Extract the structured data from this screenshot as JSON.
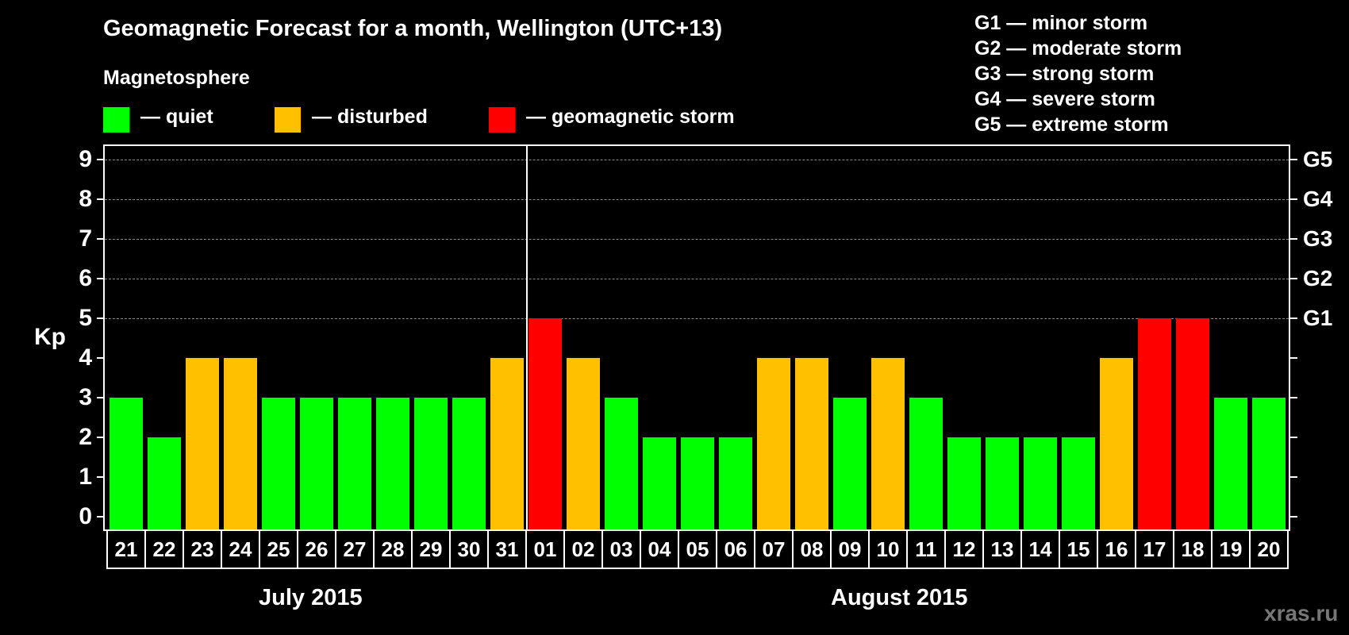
{
  "title": "Geomagnetic Forecast for a month, Wellington (UTC+13)",
  "subtitle": "Magnetosphere",
  "legend": [
    {
      "label": "— quiet",
      "color": "#00FF00"
    },
    {
      "label": "— disturbed",
      "color": "#FFC000"
    },
    {
      "label": "— geomagnetic storm",
      "color": "#FF0000"
    }
  ],
  "g_scale": [
    "G1 — minor storm",
    "G2 — moderate storm",
    "G3 — strong storm",
    "G4 — severe storm",
    "G5 — extreme storm"
  ],
  "y_axis_label": "Kp",
  "y_ticks": [
    "0",
    "1",
    "2",
    "3",
    "4",
    "5",
    "6",
    "7",
    "8",
    "9"
  ],
  "right_ticks": {
    "5": "G1",
    "6": "G2",
    "7": "G3",
    "8": "G4",
    "9": "G5"
  },
  "months": [
    "July 2015",
    "August 2015"
  ],
  "watermark": "xras.ru",
  "colors": {
    "quiet": "#00FF00",
    "disturbed": "#FFC000",
    "storm": "#FF0000",
    "grid": "#8a8a8a"
  },
  "chart_data": {
    "type": "bar",
    "title": "Geomagnetic Forecast for a month, Wellington (UTC+13)",
    "xlabel": "",
    "ylabel": "Kp",
    "ylim": [
      0,
      9
    ],
    "grid": "dashed horizontal lines at Kp 5-9",
    "categories": [
      "21",
      "22",
      "23",
      "24",
      "25",
      "26",
      "27",
      "28",
      "29",
      "30",
      "31",
      "01",
      "02",
      "03",
      "04",
      "05",
      "06",
      "07",
      "08",
      "09",
      "10",
      "11",
      "12",
      "13",
      "14",
      "15",
      "16",
      "17",
      "18",
      "19",
      "20"
    ],
    "month_groups": [
      {
        "label": "July 2015",
        "days": [
          "21",
          "22",
          "23",
          "24",
          "25",
          "26",
          "27",
          "28",
          "29",
          "30",
          "31"
        ]
      },
      {
        "label": "August 2015",
        "days": [
          "01",
          "02",
          "03",
          "04",
          "05",
          "06",
          "07",
          "08",
          "09",
          "10",
          "11",
          "12",
          "13",
          "14",
          "15",
          "16",
          "17",
          "18",
          "19",
          "20"
        ]
      }
    ],
    "values": [
      3,
      2,
      4,
      4,
      3,
      3,
      3,
      3,
      3,
      3,
      4,
      5,
      4,
      3,
      2,
      2,
      2,
      4,
      4,
      3,
      4,
      3,
      2,
      2,
      2,
      2,
      4,
      5,
      5,
      3,
      3
    ],
    "status": [
      "quiet",
      "quiet",
      "disturbed",
      "disturbed",
      "quiet",
      "quiet",
      "quiet",
      "quiet",
      "quiet",
      "quiet",
      "disturbed",
      "storm",
      "disturbed",
      "quiet",
      "quiet",
      "quiet",
      "quiet",
      "disturbed",
      "disturbed",
      "quiet",
      "disturbed",
      "quiet",
      "quiet",
      "quiet",
      "quiet",
      "quiet",
      "disturbed",
      "storm",
      "storm",
      "quiet",
      "quiet"
    ],
    "legend": [
      "quiet",
      "disturbed",
      "geomagnetic storm"
    ],
    "secondary_axis": {
      "5": "G1",
      "6": "G2",
      "7": "G3",
      "8": "G4",
      "9": "G5"
    }
  }
}
